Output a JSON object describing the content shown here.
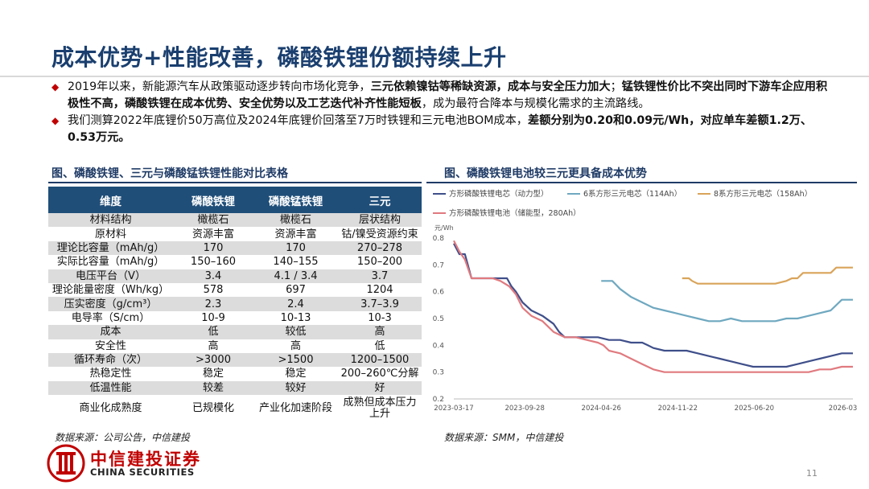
{
  "header": {
    "title": "成本优势+性能改善，磷酸铁锂份额持续上升"
  },
  "bullets": [
    {
      "segments": [
        {
          "text": "2019年以来，新能源汽车从政策驱动逐步转向市场化竞争，",
          "bold": false
        },
        {
          "text": "三元依赖镍钴等稀缺资源，成本与安全压力加大",
          "bold": true
        },
        {
          "text": "；",
          "bold": false
        },
        {
          "text": "锰铁锂性价比不突出同时下游车企应用积极性不高，磷酸铁锂在成本优势、安全优势以及工艺迭代补齐性能短板",
          "bold": true
        },
        {
          "text": "，成为最符合降本与规模化需求的主流路线。",
          "bold": false
        }
      ]
    },
    {
      "segments": [
        {
          "text": "我们测算2022年底锂价50万高位及2024年底锂价回落至7万时铁锂和三元电池BOM成本，",
          "bold": false
        },
        {
          "text": "差额分别为0.20和0.09元/Wh，对应单车差额1.2万、0.53万元。",
          "bold": true
        }
      ]
    }
  ],
  "left_panel": {
    "caption": "图、磷酸铁锂、三元与磷酸锰铁锂性能对比表格",
    "headers": [
      "维度",
      "磷酸铁锂",
      "磷酸锰铁锂",
      "三元"
    ],
    "rows": [
      [
        "材料结构",
        "橄榄石",
        "橄榄石",
        "层状结构"
      ],
      [
        "原材料",
        "资源丰富",
        "资源丰富",
        "钴/镍受资源约束"
      ],
      [
        "理论比容量（mAh/g）",
        "170",
        "170",
        "270–278"
      ],
      [
        "实际比容量（mAh/g）",
        "150–160",
        "140–155",
        "150–200"
      ],
      [
        "电压平台（V）",
        "3.4",
        "4.1 / 3.4",
        "3.7"
      ],
      [
        "理论能量密度（Wh/kg）",
        "578",
        "697",
        "1204"
      ],
      [
        "压实密度（g/cm³）",
        "2.3",
        "2.4",
        "3.7–3.9"
      ],
      [
        "电导率（S/cm）",
        "10-9",
        "10-13",
        "10-3"
      ],
      [
        "成本",
        "低",
        "较低",
        "高"
      ],
      [
        "安全性",
        "高",
        "高",
        "低"
      ],
      [
        "循环寿命（次）",
        ">3000",
        ">1500",
        "1200–1500"
      ],
      [
        "热稳定性",
        "稳定",
        "稳定",
        "200–260℃分解"
      ],
      [
        "低温性能",
        "较差",
        "较好",
        "好"
      ],
      [
        "商业化成熟度",
        "已规模化",
        "产业化加速阶段",
        "成熟但成本压力上升"
      ]
    ],
    "source": "数据来源：公司公告，中信建投"
  },
  "right_panel": {
    "caption": "图、磷酸铁锂电池较三元更具备成本优势",
    "source": "数据来源：SMM，中信建投"
  },
  "chart_data": {
    "type": "line",
    "title": "图、磷酸铁锂电池较三元更具备成本优势",
    "ylabel": "元/Wh",
    "ylim": [
      0.2,
      0.8
    ],
    "yticks": [
      0.2,
      0.3,
      0.4,
      0.5,
      0.6,
      0.7,
      0.8
    ],
    "x_range": [
      0,
      36
    ],
    "x_ticks": [
      {
        "t": 0,
        "label": "2023-03-17"
      },
      {
        "t": 6.4,
        "label": "2023-09-28"
      },
      {
        "t": 13.3,
        "label": "2024-04-26"
      },
      {
        "t": 20.2,
        "label": "2024-11-22"
      },
      {
        "t": 27.1,
        "label": "2025-06-20"
      },
      {
        "t": 35.6,
        "label": "2026-03-06"
      }
    ],
    "legend": "top",
    "series": [
      {
        "name": "方形磷酸铁锂电芯（动力型）",
        "color": "#3f4f8a",
        "points": [
          [
            0,
            0.78
          ],
          [
            0.5,
            0.74
          ],
          [
            1,
            0.74
          ],
          [
            1.6,
            0.65
          ],
          [
            2.5,
            0.65
          ],
          [
            3.5,
            0.65
          ],
          [
            4.8,
            0.65
          ],
          [
            5.2,
            0.62
          ],
          [
            5.6,
            0.6
          ],
          [
            6.2,
            0.56
          ],
          [
            7,
            0.53
          ],
          [
            8,
            0.51
          ],
          [
            9,
            0.48
          ],
          [
            9.5,
            0.45
          ],
          [
            10,
            0.43
          ],
          [
            11,
            0.43
          ],
          [
            12,
            0.43
          ],
          [
            13,
            0.43
          ],
          [
            14,
            0.42
          ],
          [
            15,
            0.42
          ],
          [
            16,
            0.41
          ],
          [
            17,
            0.41
          ],
          [
            17.5,
            0.4
          ],
          [
            18,
            0.39
          ],
          [
            19,
            0.38
          ],
          [
            20,
            0.38
          ],
          [
            21,
            0.38
          ],
          [
            22,
            0.37
          ],
          [
            23,
            0.36
          ],
          [
            24,
            0.35
          ],
          [
            25,
            0.34
          ],
          [
            26,
            0.33
          ],
          [
            27,
            0.32
          ],
          [
            28,
            0.32
          ],
          [
            29,
            0.32
          ],
          [
            30,
            0.32
          ],
          [
            31,
            0.33
          ],
          [
            32,
            0.34
          ],
          [
            33,
            0.35
          ],
          [
            34,
            0.36
          ],
          [
            35,
            0.37
          ],
          [
            36,
            0.37
          ]
        ]
      },
      {
        "name": "6系方形三元电芯（114Ah）",
        "color": "#6fa8c0",
        "points": [
          [
            13.3,
            0.64
          ],
          [
            14.3,
            0.64
          ],
          [
            15,
            0.61
          ],
          [
            16,
            0.58
          ],
          [
            17,
            0.56
          ],
          [
            18,
            0.54
          ],
          [
            19,
            0.53
          ],
          [
            20,
            0.52
          ],
          [
            21,
            0.51
          ],
          [
            22,
            0.5
          ],
          [
            23,
            0.49
          ],
          [
            24,
            0.49
          ],
          [
            25,
            0.5
          ],
          [
            26,
            0.49
          ],
          [
            27,
            0.49
          ],
          [
            28,
            0.49
          ],
          [
            29,
            0.49
          ],
          [
            30,
            0.5
          ],
          [
            31,
            0.5
          ],
          [
            32,
            0.51
          ],
          [
            33,
            0.52
          ],
          [
            34,
            0.53
          ],
          [
            35,
            0.57
          ],
          [
            36,
            0.57
          ]
        ]
      },
      {
        "name": "8系方形三元电芯（158Ah）",
        "color": "#d9a45a",
        "points": [
          [
            20.6,
            0.65
          ],
          [
            21.2,
            0.65
          ],
          [
            21.5,
            0.64
          ],
          [
            22,
            0.63
          ],
          [
            23,
            0.63
          ],
          [
            24,
            0.63
          ],
          [
            25,
            0.63
          ],
          [
            26,
            0.63
          ],
          [
            27,
            0.63
          ],
          [
            28,
            0.63
          ],
          [
            29,
            0.63
          ],
          [
            30,
            0.64
          ],
          [
            30.5,
            0.65
          ],
          [
            31,
            0.65
          ],
          [
            31.5,
            0.67
          ],
          [
            32,
            0.67
          ],
          [
            33,
            0.67
          ],
          [
            34,
            0.67
          ],
          [
            34.5,
            0.69
          ],
          [
            35,
            0.69
          ],
          [
            36,
            0.69
          ]
        ]
      },
      {
        "name": "方形磷酸铁锂电池（储能型，280Ah）",
        "color": "#e07a7f",
        "points": [
          [
            0,
            0.79
          ],
          [
            0.5,
            0.75
          ],
          [
            1,
            0.72
          ],
          [
            1.6,
            0.65
          ],
          [
            2.5,
            0.65
          ],
          [
            3.5,
            0.65
          ],
          [
            4.2,
            0.64
          ],
          [
            5,
            0.62
          ],
          [
            5.6,
            0.59
          ],
          [
            6.2,
            0.54
          ],
          [
            7,
            0.51
          ],
          [
            8,
            0.49
          ],
          [
            9,
            0.45
          ],
          [
            10,
            0.43
          ],
          [
            11,
            0.43
          ],
          [
            12,
            0.42
          ],
          [
            13,
            0.41
          ],
          [
            13.5,
            0.4
          ],
          [
            14,
            0.38
          ],
          [
            15,
            0.37
          ],
          [
            16,
            0.35
          ],
          [
            17,
            0.33
          ],
          [
            18,
            0.31
          ],
          [
            19,
            0.3
          ],
          [
            20,
            0.3
          ],
          [
            21,
            0.3
          ],
          [
            22,
            0.3
          ],
          [
            23,
            0.3
          ],
          [
            24,
            0.3
          ],
          [
            25,
            0.3
          ],
          [
            26,
            0.3
          ],
          [
            27,
            0.3
          ],
          [
            28,
            0.3
          ],
          [
            29,
            0.3
          ],
          [
            30,
            0.3
          ],
          [
            31,
            0.3
          ],
          [
            32,
            0.3
          ],
          [
            33,
            0.31
          ],
          [
            34,
            0.31
          ],
          [
            35,
            0.32
          ],
          [
            36,
            0.32
          ]
        ]
      }
    ]
  },
  "footer": {
    "logo_cn": "中信建投证券",
    "logo_en": "CHINA SECURITIES",
    "page_number": "11"
  }
}
